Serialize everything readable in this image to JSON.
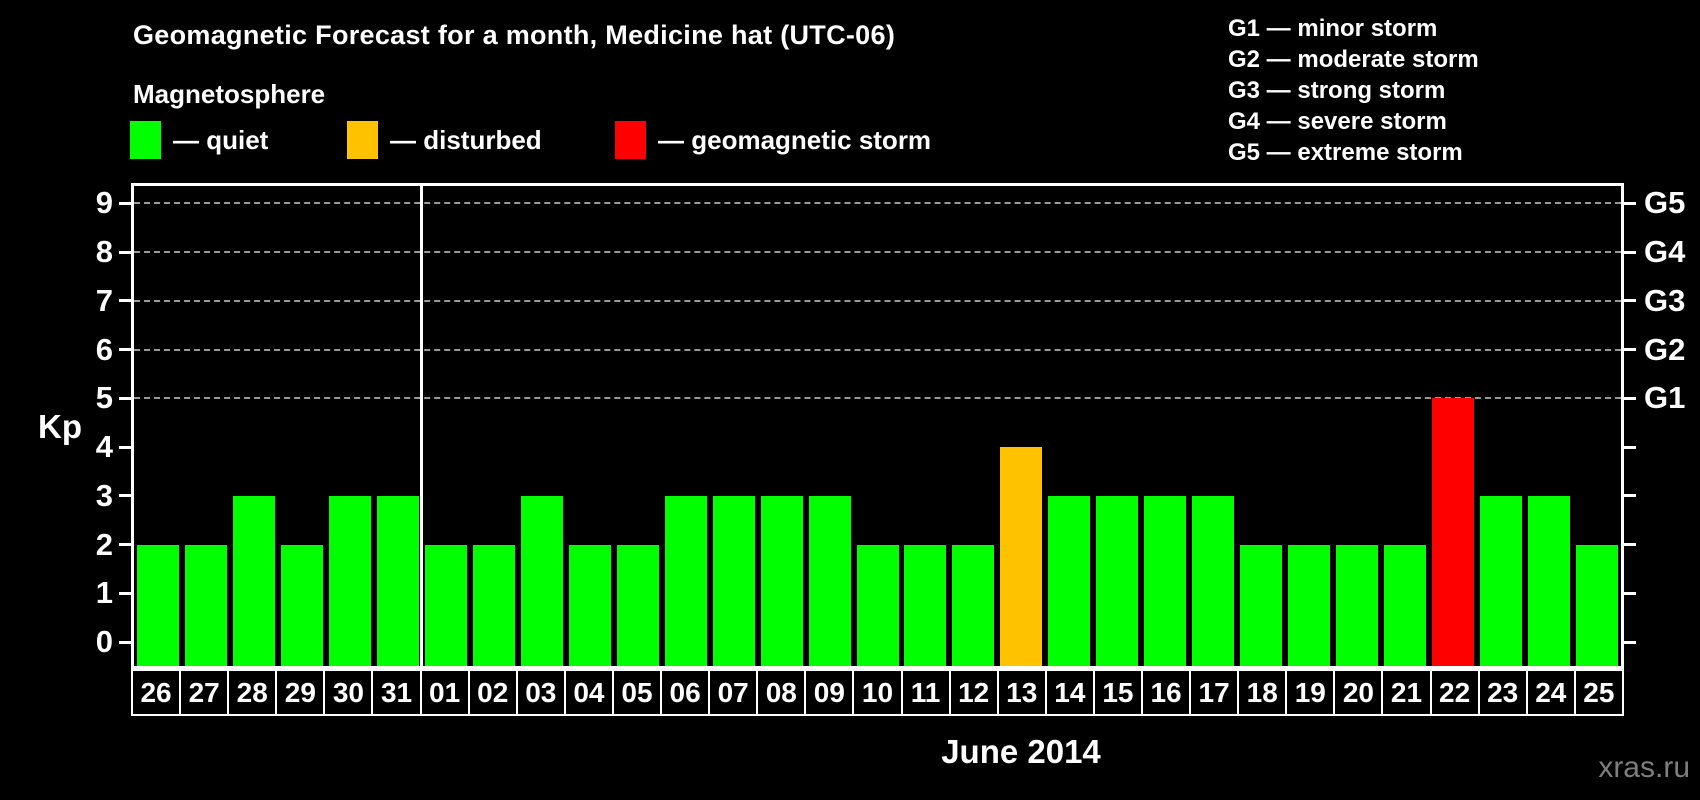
{
  "header": {
    "title": "Geomagnetic Forecast for a month, Medicine hat (UTC-06)",
    "subtitle": "Magnetosphere"
  },
  "legend": {
    "items": [
      {
        "name": "quiet",
        "label": "— quiet",
        "color": "#00ff00"
      },
      {
        "name": "disturbed",
        "label": "— disturbed",
        "color": "#ffc200"
      },
      {
        "name": "storm",
        "label": "— geomagnetic storm",
        "color": "#ff0000"
      }
    ]
  },
  "storm_scale": {
    "lines": [
      "G1 — minor storm",
      "G2 — moderate storm",
      "G3 — strong storm",
      "G4 — severe storm",
      "G5 — extreme storm"
    ]
  },
  "watermark": "xras.ru",
  "chart_data": {
    "type": "bar",
    "title": "Geomagnetic Forecast for a month, Medicine hat (UTC-06)",
    "xlabel": "June 2014",
    "ylabel": "Kp",
    "ylim": [
      -0.55,
      9.42
    ],
    "yticks": [
      0,
      1,
      2,
      3,
      4,
      5,
      6,
      7,
      8,
      9
    ],
    "gridlines_at": [
      5,
      6,
      7,
      8,
      9
    ],
    "grid_style": "horizontal dashed gray lines at storm levels only",
    "legend_position": "top-left",
    "right_axis": [
      {
        "value": 5,
        "label": "G1"
      },
      {
        "value": 6,
        "label": "G2"
      },
      {
        "value": 7,
        "label": "G3"
      },
      {
        "value": 8,
        "label": "G4"
      },
      {
        "value": 9,
        "label": "G5"
      }
    ],
    "categories": [
      "26",
      "27",
      "28",
      "29",
      "30",
      "31",
      "01",
      "02",
      "03",
      "04",
      "05",
      "06",
      "07",
      "08",
      "09",
      "10",
      "11",
      "12",
      "13",
      "14",
      "15",
      "16",
      "17",
      "18",
      "19",
      "20",
      "21",
      "22",
      "23",
      "24",
      "25"
    ],
    "values": [
      2,
      2,
      3,
      2,
      3,
      3,
      2,
      2,
      3,
      2,
      2,
      3,
      3,
      3,
      3,
      2,
      2,
      2,
      4,
      3,
      3,
      3,
      3,
      2,
      2,
      2,
      2,
      5,
      3,
      3,
      2
    ],
    "bar_states": [
      "quiet",
      "quiet",
      "quiet",
      "quiet",
      "quiet",
      "quiet",
      "quiet",
      "quiet",
      "quiet",
      "quiet",
      "quiet",
      "quiet",
      "quiet",
      "quiet",
      "quiet",
      "quiet",
      "quiet",
      "quiet",
      "disturbed",
      "quiet",
      "quiet",
      "quiet",
      "quiet",
      "quiet",
      "quiet",
      "quiet",
      "quiet",
      "storm",
      "quiet",
      "quiet",
      "quiet"
    ],
    "state_colors": {
      "quiet": "#00ff00",
      "disturbed": "#ffc200",
      "storm": "#ff0000"
    },
    "month_separator_after_index": 5
  }
}
